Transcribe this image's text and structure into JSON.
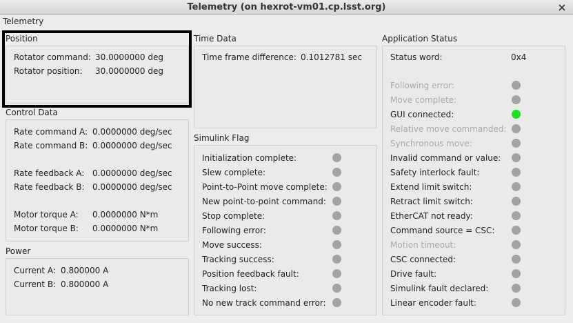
{
  "window": {
    "title": "Telemetry (on hexrot-vm01.cp.lsst.org)",
    "tab": "Telemetry"
  },
  "position": {
    "title": "Position",
    "rows": [
      {
        "label": "Rotator command:",
        "value": "30.0000000 deg"
      },
      {
        "label": "Rotator position:",
        "value": "30.0000000 deg"
      }
    ]
  },
  "control_data": {
    "title": "Control Data",
    "groups": [
      [
        {
          "label": "Rate command A:",
          "value": "0.0000000 deg/sec"
        },
        {
          "label": "Rate command B:",
          "value": "0.0000000 deg/sec"
        }
      ],
      [
        {
          "label": "Rate feedback A:",
          "value": "0.0000000 deg/sec"
        },
        {
          "label": "Rate feedback B:",
          "value": "0.0000000 deg/sec"
        }
      ],
      [
        {
          "label": "Motor torque A:",
          "value": "0.0000000 N*m"
        },
        {
          "label": "Motor torque B:",
          "value": "0.0000000 N*m"
        }
      ]
    ]
  },
  "power": {
    "title": "Power",
    "rows": [
      {
        "label": "Current A:",
        "value": "0.800000 A"
      },
      {
        "label": "Current B:",
        "value": "0.800000 A"
      }
    ]
  },
  "time_data": {
    "title": "Time Data",
    "rows": [
      {
        "label": "Time frame difference:",
        "value": "0.1012781 sec"
      }
    ]
  },
  "simulink_flag": {
    "title": "Simulink Flag",
    "flags": [
      {
        "label": "Initialization complete:",
        "on": false,
        "enabled": true
      },
      {
        "label": "Slew complete:",
        "on": false,
        "enabled": true
      },
      {
        "label": "Point-to-Point move complete:",
        "on": false,
        "enabled": true
      },
      {
        "label": "New point-to-point command:",
        "on": false,
        "enabled": true
      },
      {
        "label": "Stop complete:",
        "on": false,
        "enabled": true
      },
      {
        "label": "Following error:",
        "on": false,
        "enabled": true
      },
      {
        "label": "Move success:",
        "on": false,
        "enabled": true
      },
      {
        "label": "Tracking success:",
        "on": false,
        "enabled": true
      },
      {
        "label": "Position feedback fault:",
        "on": false,
        "enabled": true
      },
      {
        "label": "Tracking lost:",
        "on": false,
        "enabled": true
      },
      {
        "label": "No new track command error:",
        "on": false,
        "enabled": true
      }
    ]
  },
  "application_status": {
    "title": "Application Status",
    "rows": [
      {
        "label": "Status word:",
        "value": "0x4"
      }
    ],
    "flags": [
      {
        "label": "Following error:",
        "on": false,
        "enabled": false
      },
      {
        "label": "Move complete:",
        "on": false,
        "enabled": false
      },
      {
        "label": "GUI connected:",
        "on": true,
        "enabled": true
      },
      {
        "label": "Relative move commanded:",
        "on": false,
        "enabled": false
      },
      {
        "label": "Synchronous move:",
        "on": false,
        "enabled": false
      },
      {
        "label": "Invalid command or value:",
        "on": false,
        "enabled": true
      },
      {
        "label": "Safety interlock fault:",
        "on": false,
        "enabled": true
      },
      {
        "label": "Extend limit switch:",
        "on": false,
        "enabled": true
      },
      {
        "label": "Retract limit switch:",
        "on": false,
        "enabled": true
      },
      {
        "label": "EtherCAT not ready:",
        "on": false,
        "enabled": true
      },
      {
        "label": "Command source = CSC:",
        "on": false,
        "enabled": true
      },
      {
        "label": "Motion timeout:",
        "on": false,
        "enabled": false
      },
      {
        "label": "CSC connected:",
        "on": false,
        "enabled": true
      },
      {
        "label": "Drive fault:",
        "on": false,
        "enabled": true
      },
      {
        "label": "Simulink fault declared:",
        "on": false,
        "enabled": true
      },
      {
        "label": "Linear encoder fault:",
        "on": false,
        "enabled": true
      }
    ]
  }
}
